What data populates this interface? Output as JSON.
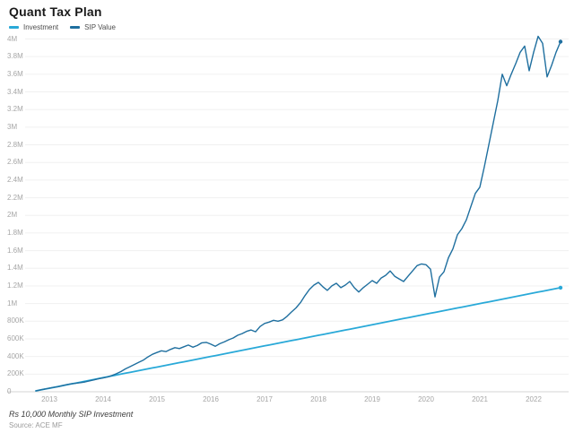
{
  "header": {
    "title": "Quant Tax Plan"
  },
  "legend": {
    "items": [
      {
        "label": "Investment",
        "color": "#29a9d8"
      },
      {
        "label": "SIP Value",
        "color": "#1f6f9f"
      }
    ]
  },
  "footer": {
    "note": "Rs 10,000 Monthly SIP Investment",
    "source": "Source: ACE MF"
  },
  "colors": {
    "investment_line": "#29a9d8",
    "sip_line": "#1f6f9f",
    "gridline": "#f0f0f0",
    "axis_line": "#d4d4d4",
    "tick_text": "#a6a6a6",
    "background": "#ffffff"
  },
  "chart_data": {
    "type": "line",
    "title": "Quant Tax Plan",
    "xlabel": "",
    "ylabel": "",
    "ylim": [
      0,
      4000000
    ],
    "grid": true,
    "legend_position": "top-left",
    "end_markers": true,
    "x": [
      "2012-10",
      "2012-11",
      "2012-12",
      "2013-01",
      "2013-02",
      "2013-03",
      "2013-04",
      "2013-05",
      "2013-06",
      "2013-07",
      "2013-08",
      "2013-09",
      "2013-10",
      "2013-11",
      "2013-12",
      "2014-01",
      "2014-02",
      "2014-03",
      "2014-04",
      "2014-05",
      "2014-06",
      "2014-07",
      "2014-08",
      "2014-09",
      "2014-10",
      "2014-11",
      "2014-12",
      "2015-01",
      "2015-02",
      "2015-03",
      "2015-04",
      "2015-05",
      "2015-06",
      "2015-07",
      "2015-08",
      "2015-09",
      "2015-10",
      "2015-11",
      "2015-12",
      "2016-01",
      "2016-02",
      "2016-03",
      "2016-04",
      "2016-05",
      "2016-06",
      "2016-07",
      "2016-08",
      "2016-09",
      "2016-10",
      "2016-11",
      "2016-12",
      "2017-01",
      "2017-02",
      "2017-03",
      "2017-04",
      "2017-05",
      "2017-06",
      "2017-07",
      "2017-08",
      "2017-09",
      "2017-10",
      "2017-11",
      "2017-12",
      "2018-01",
      "2018-02",
      "2018-03",
      "2018-04",
      "2018-05",
      "2018-06",
      "2018-07",
      "2018-08",
      "2018-09",
      "2018-10",
      "2018-11",
      "2018-12",
      "2019-01",
      "2019-02",
      "2019-03",
      "2019-04",
      "2019-05",
      "2019-06",
      "2019-07",
      "2019-08",
      "2019-09",
      "2019-10",
      "2019-11",
      "2019-12",
      "2020-01",
      "2020-02",
      "2020-03",
      "2020-04",
      "2020-05",
      "2020-06",
      "2020-07",
      "2020-08",
      "2020-09",
      "2020-10",
      "2020-11",
      "2020-12",
      "2021-01",
      "2021-02",
      "2021-03",
      "2021-04",
      "2021-05",
      "2021-06",
      "2021-07",
      "2021-08",
      "2021-09",
      "2021-10",
      "2021-11",
      "2021-12",
      "2022-01",
      "2022-02",
      "2022-03",
      "2022-04",
      "2022-05",
      "2022-06",
      "2022-07"
    ],
    "series": [
      {
        "name": "Investment",
        "color": "#29a9d8",
        "values": [
          10000,
          20000,
          30000,
          40000,
          50000,
          60000,
          70000,
          80000,
          90000,
          100000,
          110000,
          120000,
          130000,
          140000,
          150000,
          160000,
          170000,
          180000,
          190000,
          200000,
          210000,
          220000,
          230000,
          240000,
          250000,
          260000,
          270000,
          280000,
          290000,
          300000,
          310000,
          320000,
          330000,
          340000,
          350000,
          360000,
          370000,
          380000,
          390000,
          400000,
          410000,
          420000,
          430000,
          440000,
          450000,
          460000,
          470000,
          480000,
          490000,
          500000,
          510000,
          520000,
          530000,
          540000,
          550000,
          560000,
          570000,
          580000,
          590000,
          600000,
          610000,
          620000,
          630000,
          640000,
          650000,
          660000,
          670000,
          680000,
          690000,
          700000,
          710000,
          720000,
          730000,
          740000,
          750000,
          760000,
          770000,
          780000,
          790000,
          800000,
          810000,
          820000,
          830000,
          840000,
          850000,
          860000,
          870000,
          880000,
          890000,
          900000,
          910000,
          920000,
          930000,
          940000,
          950000,
          960000,
          970000,
          980000,
          990000,
          1000000,
          1010000,
          1020000,
          1030000,
          1040000,
          1050000,
          1060000,
          1070000,
          1080000,
          1090000,
          1100000,
          1110000,
          1120000,
          1130000,
          1140000,
          1150000,
          1160000,
          1170000,
          1180000
        ]
      },
      {
        "name": "SIP Value",
        "color": "#1f6f9f",
        "values": [
          10000,
          21000,
          31000,
          42000,
          50000,
          58000,
          70000,
          82000,
          90000,
          98000,
          104000,
          112000,
          124000,
          135000,
          148000,
          158000,
          168000,
          185000,
          205000,
          230000,
          260000,
          285000,
          310000,
          335000,
          360000,
          395000,
          425000,
          445000,
          465000,
          455000,
          480000,
          500000,
          490000,
          510000,
          530000,
          505000,
          525000,
          555000,
          560000,
          540000,
          515000,
          545000,
          565000,
          590000,
          610000,
          640000,
          660000,
          685000,
          700000,
          680000,
          740000,
          775000,
          790000,
          810000,
          800000,
          815000,
          855000,
          905000,
          950000,
          1010000,
          1090000,
          1160000,
          1210000,
          1240000,
          1190000,
          1150000,
          1200000,
          1230000,
          1180000,
          1210000,
          1250000,
          1180000,
          1130000,
          1180000,
          1220000,
          1260000,
          1230000,
          1290000,
          1320000,
          1370000,
          1310000,
          1280000,
          1250000,
          1310000,
          1370000,
          1430000,
          1450000,
          1440000,
          1390000,
          1075000,
          1300000,
          1360000,
          1520000,
          1620000,
          1780000,
          1850000,
          1950000,
          2100000,
          2250000,
          2320000,
          2550000,
          2800000,
          3050000,
          3300000,
          3600000,
          3470000,
          3600000,
          3720000,
          3850000,
          3920000,
          3640000,
          3850000,
          4030000,
          3950000,
          3570000,
          3700000,
          3850000,
          3970000
        ]
      }
    ],
    "y_ticks": [
      {
        "label": "0",
        "value": 0
      },
      {
        "label": "200K",
        "value": 200000
      },
      {
        "label": "400K",
        "value": 400000
      },
      {
        "label": "600K",
        "value": 600000
      },
      {
        "label": "800K",
        "value": 800000
      },
      {
        "label": "1M",
        "value": 1000000
      },
      {
        "label": "1.2M",
        "value": 1200000
      },
      {
        "label": "1.4M",
        "value": 1400000
      },
      {
        "label": "1.6M",
        "value": 1600000
      },
      {
        "label": "1.8M",
        "value": 1800000
      },
      {
        "label": "2M",
        "value": 2000000
      },
      {
        "label": "2.2M",
        "value": 2200000
      },
      {
        "label": "2.4M",
        "value": 2400000
      },
      {
        "label": "2.6M",
        "value": 2600000
      },
      {
        "label": "2.8M",
        "value": 2800000
      },
      {
        "label": "3M",
        "value": 3000000
      },
      {
        "label": "3.2M",
        "value": 3200000
      },
      {
        "label": "3.4M",
        "value": 3400000
      },
      {
        "label": "3.6M",
        "value": 3600000
      },
      {
        "label": "3.8M",
        "value": 3800000
      },
      {
        "label": "4M",
        "value": 4000000
      }
    ],
    "x_ticks": [
      {
        "label": "2013",
        "month": "2013-01"
      },
      {
        "label": "2014",
        "month": "2014-01"
      },
      {
        "label": "2015",
        "month": "2015-01"
      },
      {
        "label": "2016",
        "month": "2016-01"
      },
      {
        "label": "2017",
        "month": "2017-01"
      },
      {
        "label": "2018",
        "month": "2018-01"
      },
      {
        "label": "2019",
        "month": "2019-01"
      },
      {
        "label": "2020",
        "month": "2020-01"
      },
      {
        "label": "2021",
        "month": "2021-01"
      },
      {
        "label": "2022",
        "month": "2022-01"
      }
    ]
  }
}
